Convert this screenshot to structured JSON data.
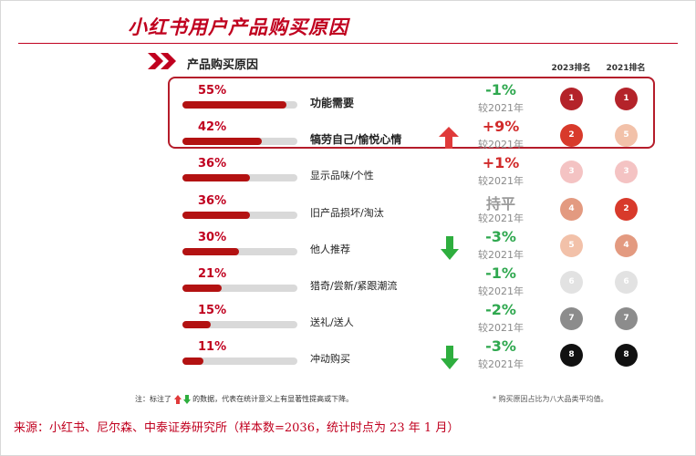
{
  "page": {
    "title": "小红书用户产品购买原因",
    "section_title": "产品购买原因",
    "col_2023": "2023排名",
    "col_2021": "2021排名",
    "note_prefix": "注：标注了",
    "note_suffix": "的数据，代表在统计意义上有显著性提高或下降。",
    "note_right": "* 购买原因占比为八大品类平均值。",
    "source": "来源：小红书、尼尔森、中泰证券研究所（样本数=2036，统计时点为 23 年 1 月）",
    "colors": {
      "accent": "#c0001f",
      "bar": "#b31212",
      "track": "#d9d9d9",
      "up": "#e03a3a",
      "down": "#2eae3e"
    }
  },
  "chart_data": {
    "type": "bar",
    "title": "产品购买原因",
    "ylim": [
      0,
      100
    ],
    "rows": [
      {
        "pct_label": "55%",
        "value": 55,
        "reason": "功能需要",
        "change": "-1%",
        "change_color": "#2fa84f",
        "vs": "较2021年",
        "rank_2023": "1",
        "rank_2021": "1",
        "color_2023": "#b4232a",
        "color_2021": "#b4232a",
        "highlight": true,
        "sig": ""
      },
      {
        "pct_label": "42%",
        "value": 42,
        "reason": "犒劳自己/愉悦心情",
        "change": "+9%",
        "change_color": "#d12a2a",
        "vs": "较2021年",
        "rank_2023": "2",
        "rank_2021": "5",
        "color_2023": "#d83a2b",
        "color_2021": "#f2c1a9",
        "highlight": true,
        "sig": "up"
      },
      {
        "pct_label": "36%",
        "value": 36,
        "reason": "显示品味/个性",
        "change": "+1%",
        "change_color": "#d12a2a",
        "vs": "较2021年",
        "rank_2023": "3",
        "rank_2021": "3",
        "color_2023": "#f4c3c3",
        "color_2021": "#f4c3c3",
        "highlight": false,
        "sig": ""
      },
      {
        "pct_label": "36%",
        "value": 36,
        "reason": "旧产品损坏/淘汰",
        "change": "持平",
        "change_color": "#9a9a9a",
        "vs": "较2021年",
        "rank_2023": "4",
        "rank_2021": "2",
        "color_2023": "#e39a80",
        "color_2021": "#d83a2b",
        "highlight": false,
        "sig": ""
      },
      {
        "pct_label": "30%",
        "value": 30,
        "reason": "他人推荐",
        "change": "-3%",
        "change_color": "#2fa84f",
        "vs": "较2021年",
        "rank_2023": "5",
        "rank_2021": "4",
        "color_2023": "#f2c1a9",
        "color_2021": "#e39a80",
        "highlight": false,
        "sig": "down"
      },
      {
        "pct_label": "21%",
        "value": 21,
        "reason": "猎奇/尝新/紧跟潮流",
        "change": "-1%",
        "change_color": "#2fa84f",
        "vs": "较2021年",
        "rank_2023": "6",
        "rank_2021": "6",
        "color_2023": "#e2e2e2",
        "color_2021": "#e2e2e2",
        "highlight": false,
        "sig": ""
      },
      {
        "pct_label": "15%",
        "value": 15,
        "reason": "送礼/送人",
        "change": "-2%",
        "change_color": "#2fa84f",
        "vs": "较2021年",
        "rank_2023": "7",
        "rank_2021": "7",
        "color_2023": "#8c8c8c",
        "color_2021": "#8c8c8c",
        "highlight": false,
        "sig": ""
      },
      {
        "pct_label": "11%",
        "value": 11,
        "reason": "冲动购买",
        "change": "-3%",
        "change_color": "#2fa84f",
        "vs": "较2021年",
        "rank_2023": "8",
        "rank_2021": "8",
        "color_2023": "#111111",
        "color_2021": "#111111",
        "highlight": false,
        "sig": "down"
      }
    ]
  }
}
